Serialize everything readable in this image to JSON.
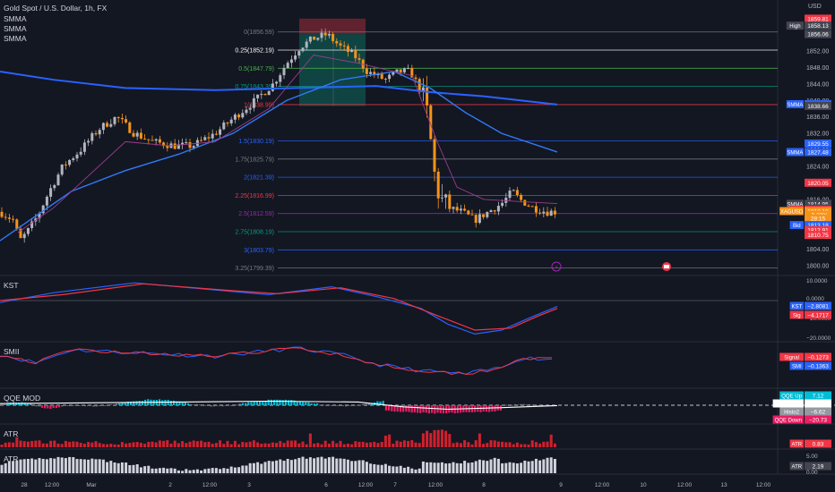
{
  "header": {
    "symbol": "Gold Spot / U.S. Dollar, 1h, FX",
    "overlays": [
      "SMMA",
      "SMMA",
      "SMMA"
    ],
    "currency": "USD"
  },
  "colors": {
    "background": "#131722",
    "up": "#b2b5be",
    "down": "#f7931a",
    "smma_slow": "#2962ff",
    "smma_mid": "#3179f5",
    "smma_fast": "#9c3d8d",
    "red_label": "#f23645",
    "blue_label": "#2962ff",
    "grey_label": "#434651",
    "orange_label": "#f7931a"
  },
  "fib": {
    "levels": [
      {
        "label": "0(1856.59)",
        "price": 1856.59,
        "color": "#787b86"
      },
      {
        "label": "0.25(1852.19)",
        "price": 1852.19,
        "color": "#ffffff"
      },
      {
        "label": "0.5(1847.79)",
        "price": 1847.79,
        "color": "#4caf50"
      },
      {
        "label": "0.75(1843.39)",
        "price": 1843.39,
        "color": "#089981"
      },
      {
        "label": "1(1838.99)",
        "price": 1838.99,
        "color": "#f23645"
      },
      {
        "label": "1.5(1830.19)",
        "price": 1830.19,
        "color": "#2962ff"
      },
      {
        "label": "1.75(1825.79)",
        "price": 1825.79,
        "color": "#787b86"
      },
      {
        "label": "2(1821.39)",
        "price": 1821.39,
        "color": "#2962ff"
      },
      {
        "label": "2.25(1816.99)",
        "price": 1816.99,
        "color": "#f23645"
      },
      {
        "label": "2.5(1812.59)",
        "price": 1812.59,
        "color": "#9c27b0"
      },
      {
        "label": "2.75(1808.19)",
        "price": 1808.19,
        "color": "#089981"
      },
      {
        "label": "3(1803.79)",
        "price": 1803.79,
        "color": "#2962ff"
      },
      {
        "label": "3.25(1799.39)",
        "price": 1799.39,
        "color": "#787b86"
      }
    ]
  },
  "price_axis": {
    "ticks": [
      "1852.00",
      "1848.00",
      "1844.00",
      "1840.00",
      "1836.00",
      "1832.00",
      "1828.00",
      "1824.00",
      "1820.00",
      "1816.00",
      "1812.00",
      "1808.00",
      "1804.00",
      "1800.00"
    ],
    "ylim": [
      1798,
      1860
    ],
    "labels": [
      {
        "tag": "",
        "value": "1859.81",
        "price": 1859.81,
        "color": "#f23645"
      },
      {
        "tag": "High",
        "value": "1858.13",
        "price": 1858.13,
        "color": "#434651"
      },
      {
        "tag": "",
        "value": "1856.06",
        "price": 1856.06,
        "color": "#434651"
      },
      {
        "tag": "SMMA",
        "value": "1839.09",
        "price": 1839.09,
        "color": "#2962ff"
      },
      {
        "tag": "",
        "value": "1838.66",
        "price": 1838.66,
        "color": "#434651"
      },
      {
        "tag": "",
        "value": "1829.55",
        "price": 1829.55,
        "color": "#2962ff"
      },
      {
        "tag": "SMMA",
        "value": "1827.48",
        "price": 1827.48,
        "color": "#2962ff"
      },
      {
        "tag": "",
        "value": "1820.05",
        "price": 1820.05,
        "color": "#f23645"
      },
      {
        "tag": "SMMA",
        "value": "1814.95",
        "price": 1814.95,
        "color": "#434651"
      },
      {
        "tag": "",
        "value": "1813.82",
        "price": 1813.82,
        "color": "#434651"
      },
      {
        "tag": "Ask",
        "value": "1813.51",
        "price": 1813.51,
        "color": "#f23645"
      },
      {
        "tag": "XAGUSD",
        "value": "1813.18",
        "price": 1813.18,
        "color": "#f7931a"
      },
      {
        "tag": "",
        "value": "−0.22%",
        "price": 1812.3,
        "color": "#f7931a"
      },
      {
        "tag": "",
        "value": "28:15",
        "price": 1811.4,
        "color": "#f7931a"
      },
      {
        "tag": "Bid",
        "value": "1813.18",
        "price": 1809.8,
        "color": "#2962ff"
      },
      {
        "tag": "",
        "value": "1812.91",
        "price": 1808.6,
        "color": "#f23645"
      },
      {
        "tag": "",
        "value": "1810.75",
        "price": 1807.4,
        "color": "#f23645"
      }
    ]
  },
  "panes": {
    "kst": {
      "title": "KST",
      "ticks": [
        "10.0000",
        "0.0000",
        "−10.0000",
        "−20.0000"
      ],
      "labels": [
        {
          "tag": "KST",
          "value": "−2.8081",
          "color": "#2962ff"
        },
        {
          "tag": "Sig",
          "value": "−4.1717",
          "color": "#f23645"
        }
      ]
    },
    "smii": {
      "title": "SMII",
      "labels": [
        {
          "tag": "Signal",
          "value": "−0.1273",
          "color": "#f23645"
        },
        {
          "tag": "SMI",
          "value": "−0.1363",
          "color": "#2962ff"
        }
      ]
    },
    "qqe": {
      "title": "QQE MOD",
      "labels": [
        {
          "tag": "QQE Up",
          "value": "7.12",
          "color": "#00bcd4"
        },
        {
          "tag": "QQE Line",
          "value": "−1.46",
          "color": "#ffffff"
        },
        {
          "tag": "Histo2",
          "value": "−6.62",
          "color": "#9598a1"
        },
        {
          "tag": "QQE Down",
          "value": "−20.73",
          "color": "#e91e63"
        }
      ]
    },
    "atr1": {
      "title": "ATR",
      "labels": [
        {
          "tag": "ATR",
          "value": "0.83",
          "color": "#f23645"
        }
      ]
    },
    "atr2": {
      "title": "ATR",
      "ticks": [
        "5.00",
        "0.00"
      ],
      "labels": [
        {
          "tag": "ATR",
          "value": "2.19",
          "color": "#434651"
        }
      ]
    }
  },
  "time_axis": {
    "labels": [
      "28",
      "12:00",
      "Mar",
      "2",
      "12:00",
      "3",
      "6",
      "12:00",
      "7",
      "12:00",
      "8",
      "9",
      "12:00",
      "10",
      "12:00",
      "13",
      "12:00"
    ]
  },
  "chart_data": {
    "type": "candlestick",
    "title": "Gold Spot / U.S. Dollar, 1h, FX",
    "ylim": [
      1798,
      1860
    ],
    "grid": false
  }
}
